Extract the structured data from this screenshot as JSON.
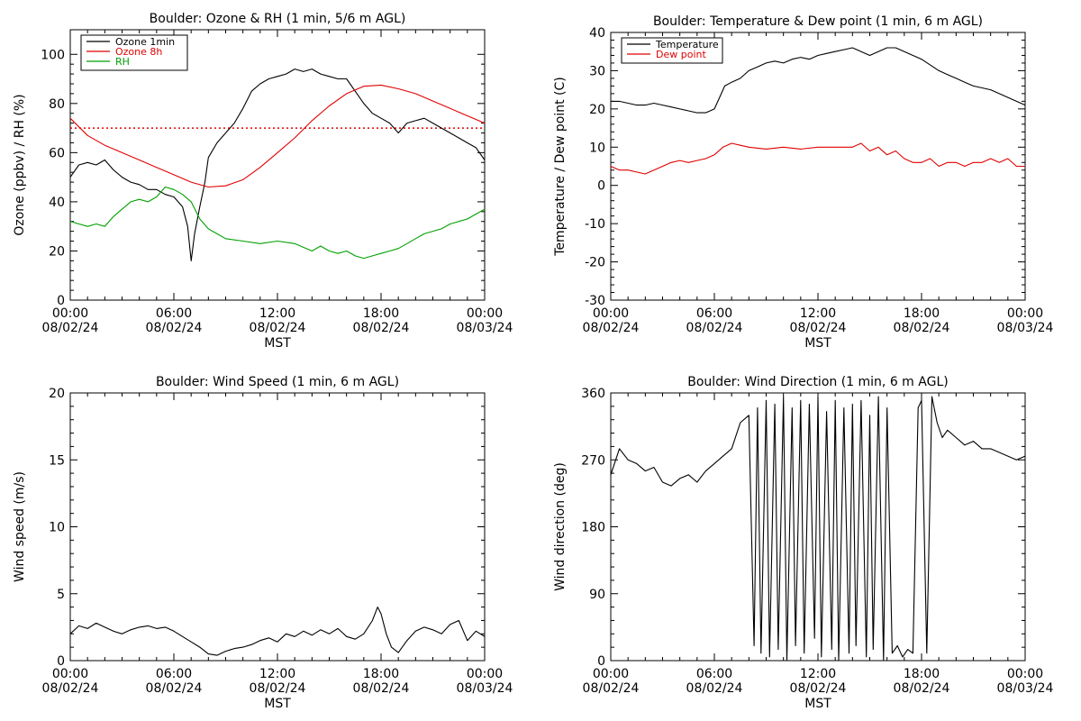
{
  "colors": {
    "black": "#000000",
    "red": "#e00000",
    "green": "#00a000",
    "dotted_line": "#e00000"
  },
  "chart_data": [
    {
      "id": "ozone-rh",
      "type": "line",
      "title": "Boulder: Ozone & RH (1 min, 5/6 m AGL)",
      "xlabel": "MST",
      "ylabel": "Ozone (ppbv) / RH (%)",
      "xlim": [
        0,
        24
      ],
      "ylim": [
        0,
        110
      ],
      "x_ticks": [
        {
          "x": 0,
          "time": "00:00",
          "date": "08/02/24"
        },
        {
          "x": 6,
          "time": "06:00",
          "date": "08/02/24"
        },
        {
          "x": 12,
          "time": "12:00",
          "date": "08/02/24"
        },
        {
          "x": 18,
          "time": "18:00",
          "date": "08/02/24"
        },
        {
          "x": 24,
          "time": "00:00",
          "date": "08/03/24"
        }
      ],
      "y_ticks": [
        0,
        20,
        40,
        60,
        80,
        100
      ],
      "legend_position": "top-left",
      "reference_line": {
        "y": 70,
        "style": "dotted",
        "color": "#e00000"
      },
      "series": [
        {
          "name": "Ozone 1min",
          "color": "#000000",
          "x": [
            0,
            0.5,
            1,
            1.5,
            2,
            2.5,
            3,
            3.5,
            4,
            4.5,
            5,
            5.5,
            6,
            6.5,
            6.8,
            7.0,
            7.2,
            7.5,
            7.8,
            8,
            8.5,
            9,
            9.5,
            10,
            10.5,
            11,
            11.5,
            12,
            12.5,
            13,
            13.5,
            14,
            14.5,
            15,
            15.5,
            16,
            16.5,
            17,
            17.5,
            18,
            18.5,
            19,
            19.5,
            20,
            20.5,
            21,
            21.5,
            22,
            22.5,
            23,
            23.5,
            24
          ],
          "y": [
            50,
            55,
            56,
            55,
            57,
            53,
            50,
            48,
            47,
            45,
            45,
            43,
            42,
            38,
            30,
            16,
            27,
            38,
            48,
            58,
            64,
            68,
            72,
            78,
            85,
            88,
            90,
            91,
            92,
            94,
            93,
            94,
            92,
            91,
            90,
            90,
            85,
            80,
            76,
            74,
            72,
            68,
            72,
            73,
            74,
            72,
            70,
            68,
            66,
            64,
            62,
            57
          ]
        },
        {
          "name": "Ozone 8h",
          "color": "#e00000",
          "x": [
            0,
            1,
            2,
            3,
            4,
            5,
            6,
            7,
            8,
            9,
            10,
            11,
            12,
            13,
            14,
            15,
            16,
            17,
            18,
            19,
            20,
            21,
            22,
            23,
            24
          ],
          "y": [
            74,
            67,
            63,
            60,
            57,
            54,
            51,
            48,
            46,
            46.5,
            49,
            54,
            60,
            66,
            73,
            79,
            84,
            87,
            87.5,
            86,
            84,
            81,
            78,
            75,
            72
          ]
        },
        {
          "name": "RH",
          "color": "#00a000",
          "x": [
            0,
            0.5,
            1,
            1.5,
            2,
            2.5,
            3,
            3.5,
            4,
            4.5,
            5,
            5.5,
            6,
            6.5,
            7,
            7.5,
            8,
            8.5,
            9,
            10,
            11,
            12,
            13,
            14,
            14.5,
            15,
            15.5,
            16,
            16.5,
            17,
            17.5,
            18,
            18.5,
            19,
            19.5,
            20,
            20.5,
            21,
            21.5,
            22,
            22.5,
            23,
            23.5,
            24
          ],
          "y": [
            32,
            31,
            30,
            31,
            30,
            34,
            37,
            40,
            41,
            40,
            42,
            46,
            45,
            43,
            40,
            33,
            29,
            27,
            25,
            24,
            23,
            24,
            23,
            20,
            22,
            20,
            19,
            20,
            18,
            17,
            18,
            19,
            20,
            21,
            23,
            25,
            27,
            28,
            29,
            31,
            32,
            33,
            35,
            37
          ]
        }
      ]
    },
    {
      "id": "temp-dew",
      "type": "line",
      "title": "Boulder: Temperature & Dew point (1 min, 6 m AGL)",
      "xlabel": "MST",
      "ylabel": "Temperature / Dew point (C)",
      "xlim": [
        0,
        24
      ],
      "ylim": [
        -30,
        40
      ],
      "x_ticks": [
        {
          "x": 0,
          "time": "00:00",
          "date": "08/02/24"
        },
        {
          "x": 6,
          "time": "06:00",
          "date": "08/02/24"
        },
        {
          "x": 12,
          "time": "12:00",
          "date": "08/02/24"
        },
        {
          "x": 18,
          "time": "18:00",
          "date": "08/02/24"
        },
        {
          "x": 24,
          "time": "00:00",
          "date": "08/03/24"
        }
      ],
      "y_ticks": [
        -30,
        -20,
        -10,
        0,
        10,
        20,
        30,
        40
      ],
      "legend_position": "top-left",
      "series": [
        {
          "name": "Temperature",
          "color": "#000000",
          "x": [
            0,
            0.5,
            1,
            1.5,
            2,
            2.5,
            3,
            3.5,
            4,
            4.5,
            5,
            5.5,
            6,
            6.3,
            6.6,
            7,
            7.5,
            8,
            8.5,
            9,
            9.5,
            10,
            10.5,
            11,
            11.5,
            12,
            12.5,
            13,
            13.5,
            14,
            14.5,
            15,
            15.5,
            16,
            16.5,
            17,
            17.5,
            18,
            18.5,
            19,
            19.5,
            20,
            20.5,
            21,
            21.5,
            22,
            22.5,
            23,
            23.5,
            24
          ],
          "y": [
            22,
            22,
            21.5,
            21,
            21,
            21.5,
            21,
            20.5,
            20,
            19.5,
            19,
            19,
            20,
            23,
            26,
            27,
            28,
            30,
            31,
            32,
            32.5,
            32,
            33,
            33.5,
            33,
            34,
            34.5,
            35,
            35.5,
            36,
            35,
            34,
            35,
            36,
            36,
            35,
            34,
            33,
            31.5,
            30,
            29,
            28,
            27,
            26,
            25.5,
            25,
            24,
            23,
            22,
            21
          ]
        },
        {
          "name": "Dew point",
          "color": "#e00000",
          "x": [
            0,
            0.5,
            1,
            1.5,
            2,
            2.5,
            3,
            3.5,
            4,
            4.5,
            5,
            5.5,
            6,
            6.5,
            7,
            7.5,
            8,
            9,
            10,
            11,
            12,
            13,
            14,
            14.5,
            15,
            15.5,
            16,
            16.5,
            17,
            17.5,
            18,
            18.5,
            19,
            19.5,
            20,
            20.5,
            21,
            21.5,
            22,
            22.5,
            23,
            23.5,
            24
          ],
          "y": [
            5,
            4,
            4,
            3.5,
            3,
            4,
            5,
            6,
            6.5,
            6,
            6.5,
            7,
            8,
            10,
            11,
            10.5,
            10,
            9.5,
            10,
            9.5,
            10,
            10,
            10,
            11,
            9,
            10,
            8,
            9,
            7,
            6,
            6,
            7,
            5,
            6,
            6,
            5,
            6,
            6,
            7,
            6,
            7,
            5,
            5
          ]
        }
      ]
    },
    {
      "id": "wind-speed",
      "type": "line",
      "title": "Boulder: Wind Speed (1 min, 6 m AGL)",
      "xlabel": "MST",
      "ylabel": "Wind speed (m/s)",
      "xlim": [
        0,
        24
      ],
      "ylim": [
        0,
        20
      ],
      "x_ticks": [
        {
          "x": 0,
          "time": "00:00",
          "date": "08/02/24"
        },
        {
          "x": 6,
          "time": "06:00",
          "date": "08/02/24"
        },
        {
          "x": 12,
          "time": "12:00",
          "date": "08/02/24"
        },
        {
          "x": 18,
          "time": "18:00",
          "date": "08/02/24"
        },
        {
          "x": 24,
          "time": "00:00",
          "date": "08/03/24"
        }
      ],
      "y_ticks": [
        0,
        5,
        10,
        15,
        20
      ],
      "series": [
        {
          "name": "",
          "color": "#000000",
          "x": [
            0,
            0.5,
            1,
            1.5,
            2,
            2.5,
            3,
            3.5,
            4,
            4.5,
            5,
            5.5,
            6,
            6.5,
            7,
            7.5,
            8,
            8.5,
            9,
            9.5,
            10,
            10.5,
            11,
            11.5,
            12,
            12.5,
            13,
            13.5,
            14,
            14.5,
            15,
            15.5,
            16,
            16.5,
            17,
            17.5,
            17.8,
            18,
            18.3,
            18.6,
            19,
            19.5,
            20,
            20.5,
            21,
            21.5,
            22,
            22.5,
            23,
            23.5,
            24
          ],
          "y": [
            2,
            2.6,
            2.4,
            2.8,
            2.5,
            2.2,
            2.0,
            2.3,
            2.5,
            2.6,
            2.4,
            2.5,
            2.2,
            1.8,
            1.4,
            1.0,
            0.5,
            0.4,
            0.7,
            0.9,
            1.0,
            1.2,
            1.5,
            1.7,
            1.4,
            2.0,
            1.8,
            2.2,
            1.9,
            2.3,
            2.0,
            2.4,
            1.8,
            1.6,
            2.0,
            3.0,
            4.0,
            3.5,
            2.0,
            1.0,
            0.6,
            1.5,
            2.2,
            2.5,
            2.3,
            2.0,
            2.7,
            3.0,
            1.5,
            2.2,
            1.8
          ]
        }
      ]
    },
    {
      "id": "wind-direction",
      "type": "line",
      "title": "Boulder: Wind Direction (1 min, 6 m AGL)",
      "xlabel": "MST",
      "ylabel": "Wind direction (deg)",
      "xlim": [
        0,
        24
      ],
      "ylim": [
        0,
        360
      ],
      "x_ticks": [
        {
          "x": 0,
          "time": "00:00",
          "date": "08/02/24"
        },
        {
          "x": 6,
          "time": "06:00",
          "date": "08/02/24"
        },
        {
          "x": 12,
          "time": "12:00",
          "date": "08/02/24"
        },
        {
          "x": 18,
          "time": "18:00",
          "date": "08/02/24"
        },
        {
          "x": 24,
          "time": "00:00",
          "date": "08/03/24"
        }
      ],
      "y_ticks": [
        0,
        90,
        180,
        270,
        360
      ],
      "series": [
        {
          "name": "",
          "color": "#000000",
          "x": [
            0,
            0.5,
            1,
            1.5,
            2,
            2.5,
            3,
            3.5,
            4,
            4.5,
            5,
            5.5,
            6,
            6.5,
            7,
            7.5,
            8,
            8.3,
            8.5,
            8.7,
            9,
            9.2,
            9.5,
            9.7,
            10,
            10.2,
            10.5,
            10.7,
            11,
            11.2,
            11.5,
            11.8,
            12,
            12.2,
            12.5,
            12.8,
            13,
            13.2,
            13.5,
            13.8,
            14,
            14.2,
            14.5,
            14.8,
            15,
            15.2,
            15.5,
            15.8,
            16,
            16.3,
            16.6,
            16.9,
            17.2,
            17.5,
            17.8,
            18,
            18.3,
            18.6,
            18.9,
            19.2,
            19.5,
            20,
            20.5,
            21,
            21.5,
            22,
            22.5,
            23,
            23.5,
            24
          ],
          "y": [
            250,
            285,
            270,
            265,
            255,
            260,
            240,
            235,
            245,
            250,
            240,
            255,
            265,
            275,
            285,
            320,
            330,
            20,
            340,
            10,
            350,
            5,
            345,
            15,
            355,
            0,
            340,
            20,
            350,
            10,
            345,
            30,
            355,
            5,
            335,
            15,
            350,
            0,
            340,
            10,
            345,
            20,
            350,
            5,
            330,
            15,
            355,
            0,
            340,
            10,
            20,
            5,
            15,
            10,
            340,
            350,
            10,
            355,
            320,
            300,
            310,
            300,
            290,
            295,
            285,
            285,
            280,
            275,
            270,
            275
          ]
        }
      ]
    }
  ]
}
